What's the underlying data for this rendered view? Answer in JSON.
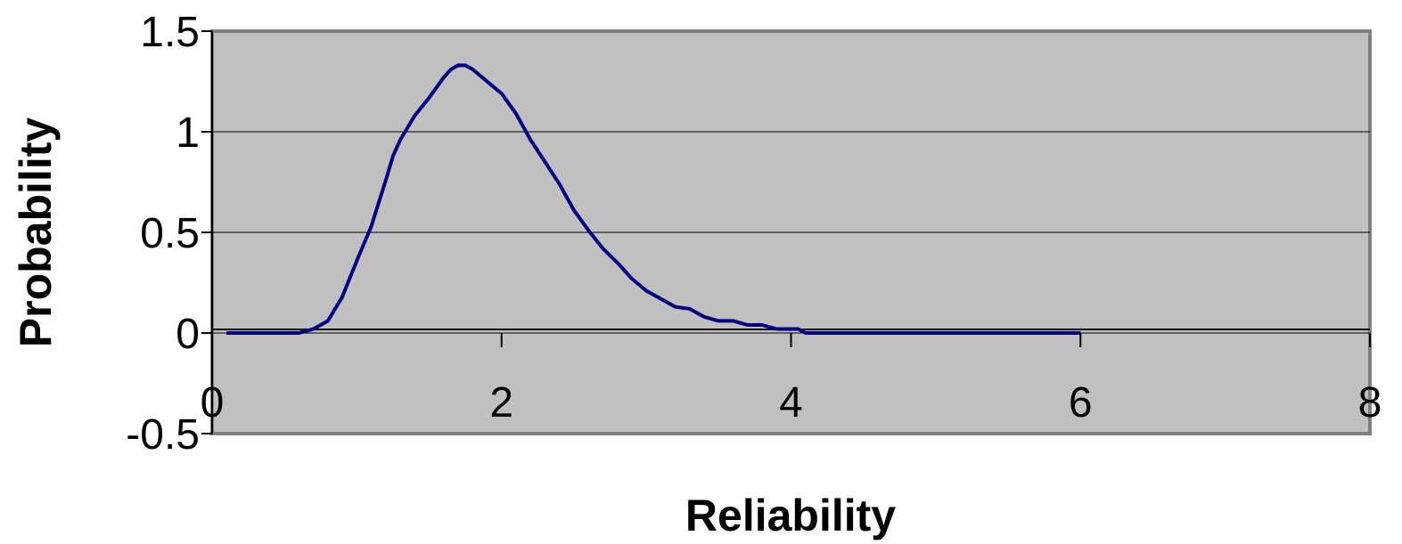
{
  "chart_data": {
    "type": "line",
    "title": "",
    "xlabel": "Reliability",
    "ylabel": "Probability",
    "xlim": [
      0,
      8
    ],
    "ylim": [
      -0.5,
      1.5
    ],
    "xticks": [
      0,
      2,
      4,
      6,
      8
    ],
    "yticks": [
      -0.5,
      0,
      0.5,
      1,
      1.5
    ],
    "xtick_labels": [
      "0",
      "2",
      "4",
      "6",
      "8"
    ],
    "ytick_labels": [
      "-0.5",
      "0",
      "0.5",
      "1",
      "1.5"
    ],
    "grid": "horizontal",
    "legend": "none",
    "series": [
      {
        "x": [
          0.1,
          0.2,
          0.3,
          0.4,
          0.5,
          0.6,
          0.7,
          0.8,
          0.9,
          1.0,
          1.1,
          1.2,
          1.25,
          1.3,
          1.4,
          1.5,
          1.6,
          1.65,
          1.7,
          1.75,
          1.8,
          1.9,
          2.0,
          2.1,
          2.2,
          2.3,
          2.4,
          2.5,
          2.6,
          2.7,
          2.8,
          2.9,
          3.0,
          3.1,
          3.2,
          3.3,
          3.4,
          3.5,
          3.55,
          3.6,
          3.7,
          3.75,
          3.8,
          3.9,
          4.0,
          4.05,
          4.1,
          4.2,
          4.4,
          4.6,
          4.8,
          5.0,
          5.2,
          5.4,
          5.6,
          5.8,
          6.0
        ],
        "y": [
          0,
          0,
          0,
          0,
          0,
          0,
          0.02,
          0.06,
          0.18,
          0.36,
          0.53,
          0.76,
          0.88,
          0.96,
          1.08,
          1.17,
          1.27,
          1.31,
          1.33,
          1.33,
          1.31,
          1.25,
          1.19,
          1.09,
          0.96,
          0.85,
          0.74,
          0.61,
          0.51,
          0.42,
          0.35,
          0.27,
          0.21,
          0.17,
          0.13,
          0.12,
          0.08,
          0.06,
          0.06,
          0.06,
          0.04,
          0.04,
          0.04,
          0.02,
          0.02,
          0.02,
          0.0,
          0,
          0,
          0,
          0,
          0,
          0,
          0,
          0,
          0,
          0
        ],
        "color": "#000080"
      }
    ],
    "colors": {
      "plot_background": "#c0c0c0",
      "plot_border": "#808080",
      "gridline": "#000000",
      "line": "#000080"
    }
  }
}
